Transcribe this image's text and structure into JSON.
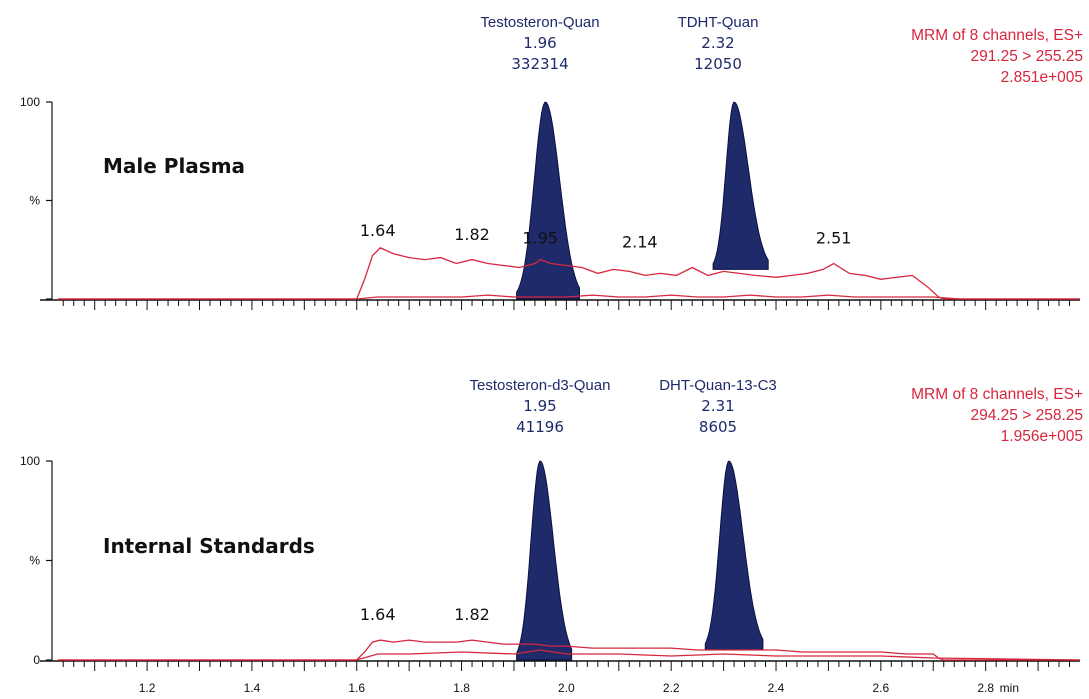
{
  "colors": {
    "trace": "#d7263d",
    "peak_fill": "#1f2a6b",
    "axis": "#111111",
    "label_blue": "#1f2a6b",
    "label_red": "#d7263d"
  },
  "x_axis": {
    "ticks": [
      "1.2",
      "1.4",
      "1.6",
      "1.8",
      "2.0",
      "2.2",
      "2.4",
      "2.6",
      "2.8"
    ],
    "unit": "min",
    "range": [
      1.03,
      2.98
    ]
  },
  "chart_data": [
    {
      "type": "line",
      "sample_label": "Male Plasma",
      "y_ticks": [
        "100",
        "%",
        ""
      ],
      "ylim": [
        0,
        100
      ],
      "channel_info": [
        "MRM of 8 channels, ES+",
        "291.25 > 255.25",
        "2.851e+005"
      ],
      "integrated_peaks": [
        {
          "name": "Testosteron-Quan",
          "rt": "1.96",
          "area": "332314",
          "apex_x": 1.96,
          "height": 100,
          "left_x": 1.905,
          "right_x": 2.025,
          "base_left": 0,
          "base_right": 0
        },
        {
          "name": "TDHT-Quan",
          "rt": "2.32",
          "area": "12050",
          "apex_x": 2.32,
          "height": 100,
          "left_x": 2.28,
          "right_x": 2.385,
          "base_left": 15,
          "base_right": 15
        }
      ],
      "peak_labels": [
        {
          "text": "1.64",
          "x": 1.64,
          "y": 28
        },
        {
          "text": "1.82",
          "x": 1.82,
          "y": 26
        },
        {
          "text": "1.95",
          "x": 1.95,
          "y": 24
        },
        {
          "text": "2.14",
          "x": 2.14,
          "y": 22
        },
        {
          "text": "2.51",
          "x": 2.51,
          "y": 24
        }
      ],
      "series": [
        {
          "x": [
            1.03,
            1.6,
            1.615,
            1.63,
            1.645,
            1.67,
            1.7,
            1.73,
            1.76,
            1.79,
            1.82,
            1.85,
            1.88,
            1.91,
            1.94,
            1.95,
            1.97,
            2.0,
            2.03,
            2.06,
            2.09,
            2.12,
            2.15,
            2.18,
            2.21,
            2.24,
            2.27,
            2.3,
            2.33,
            2.36,
            2.4,
            2.43,
            2.46,
            2.49,
            2.51,
            2.54,
            2.57,
            2.6,
            2.63,
            2.66,
            2.69,
            2.71,
            2.72,
            2.98
          ],
          "y": [
            0,
            0,
            10,
            22,
            26,
            23,
            21,
            20,
            21,
            18,
            20,
            18,
            17,
            16,
            18,
            20,
            18,
            17,
            16,
            13,
            15,
            14,
            12,
            13,
            12,
            16,
            12,
            14,
            13,
            12,
            11,
            12,
            13,
            15,
            18,
            13,
            12,
            10,
            11,
            12,
            6,
            1,
            0,
            0
          ]
        },
        {
          "x": [
            1.03,
            1.6,
            1.64,
            1.7,
            1.75,
            1.8,
            1.85,
            1.9,
            2.0,
            2.05,
            2.1,
            2.15,
            2.2,
            2.25,
            2.3,
            2.35,
            2.4,
            2.45,
            2.5,
            2.55,
            2.6,
            2.65,
            2.7,
            2.75,
            2.98
          ],
          "y": [
            0,
            0,
            1,
            1,
            1,
            1,
            2,
            1,
            1,
            2,
            1,
            1,
            2,
            1,
            1,
            2,
            1,
            1,
            2,
            1,
            1,
            1,
            1,
            0,
            0
          ]
        }
      ]
    },
    {
      "type": "line",
      "sample_label": "Internal Standards",
      "y_ticks": [
        "100",
        "%",
        "0"
      ],
      "ylim": [
        0,
        100
      ],
      "channel_info": [
        "MRM of 8 channels, ES+",
        "294.25 > 258.25",
        "1.956e+005"
      ],
      "integrated_peaks": [
        {
          "name": "Testosteron-d3-Quan",
          "rt": "1.95",
          "area": "41196",
          "apex_x": 1.95,
          "height": 100,
          "left_x": 1.905,
          "right_x": 2.01,
          "base_left": 0,
          "base_right": 0
        },
        {
          "name": "DHT-Quan-13-C3",
          "rt": "2.31",
          "area": "8605",
          "apex_x": 2.31,
          "height": 100,
          "left_x": 2.265,
          "right_x": 2.375,
          "base_left": 5,
          "base_right": 5
        }
      ],
      "peak_labels": [
        {
          "text": "1.64",
          "x": 1.64,
          "y": 16
        },
        {
          "text": "1.82",
          "x": 1.82,
          "y": 16
        }
      ],
      "series": [
        {
          "x": [
            1.03,
            1.6,
            1.615,
            1.63,
            1.645,
            1.67,
            1.7,
            1.73,
            1.76,
            1.79,
            1.82,
            1.85,
            1.88,
            1.91,
            1.94,
            1.97,
            2.0,
            2.05,
            2.1,
            2.15,
            2.2,
            2.25,
            2.3,
            2.35,
            2.4,
            2.45,
            2.5,
            2.55,
            2.6,
            2.65,
            2.7,
            2.71,
            2.72,
            2.98
          ],
          "y": [
            0,
            0,
            4,
            9,
            10,
            9,
            10,
            9,
            9,
            9,
            10,
            9,
            8,
            8,
            8,
            7,
            7,
            6,
            6,
            6,
            6,
            5,
            5,
            5,
            5,
            4,
            4,
            4,
            4,
            3,
            3,
            1,
            0,
            0
          ]
        },
        {
          "x": [
            1.03,
            1.6,
            1.64,
            1.7,
            1.8,
            1.9,
            1.95,
            2.0,
            2.1,
            2.2,
            2.3,
            2.4,
            2.5,
            2.6,
            2.7,
            2.98
          ],
          "y": [
            0,
            0,
            3,
            3,
            4,
            3,
            5,
            3,
            3,
            2,
            3,
            2,
            2,
            2,
            1,
            0
          ]
        }
      ]
    }
  ]
}
